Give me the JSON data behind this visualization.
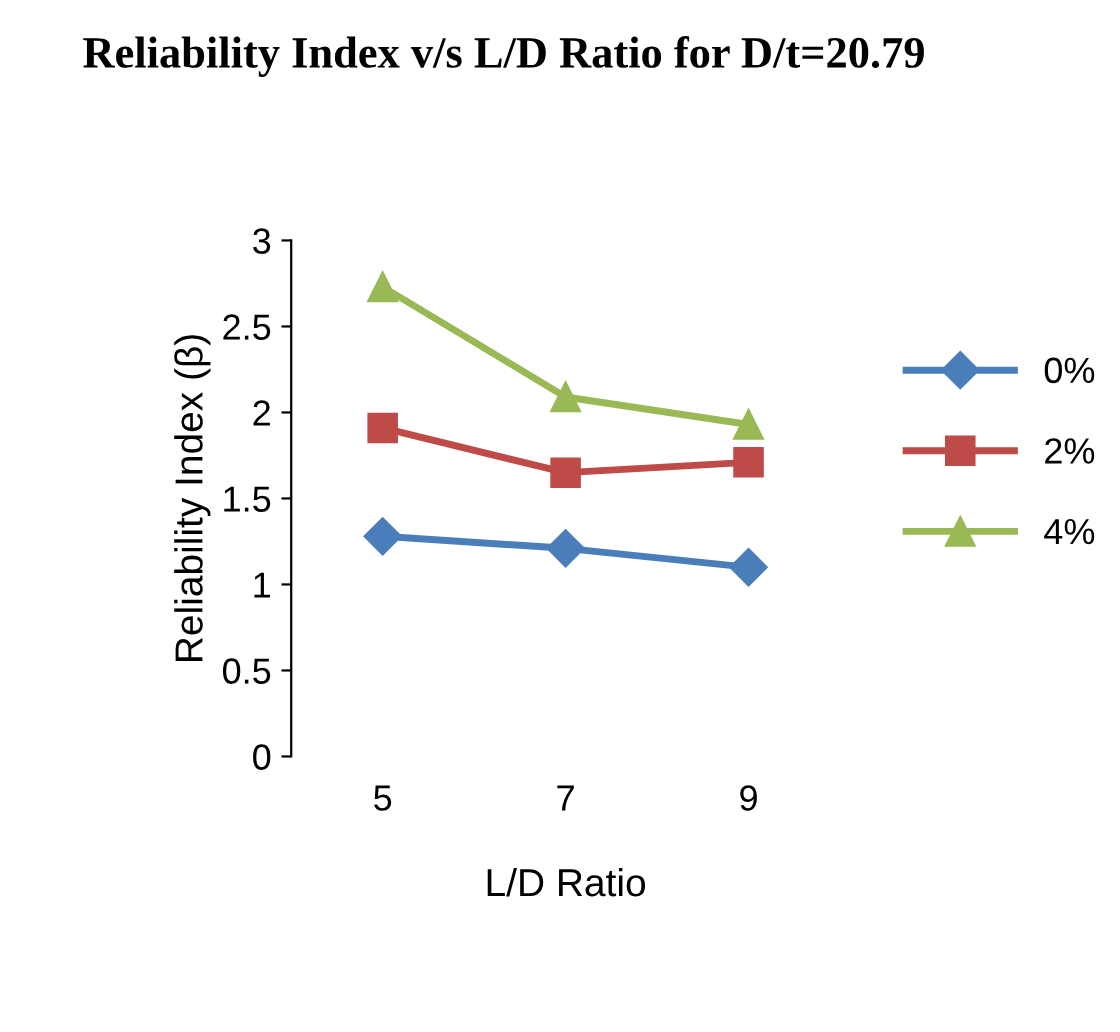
{
  "chart_data": {
    "type": "line",
    "title": "Reliability Index v/s L/D Ratio for D/t=20.79",
    "xlabel": "L/D Ratio",
    "ylabel": "Reliability Index (β)",
    "categories": [
      "5",
      "7",
      "9"
    ],
    "series": [
      {
        "name": "0%",
        "color": "#4a7ebb",
        "marker": "diamond",
        "values": [
          1.28,
          1.21,
          1.1
        ]
      },
      {
        "name": "2%",
        "color": "#be4b48",
        "marker": "square",
        "values": [
          1.91,
          1.65,
          1.71
        ]
      },
      {
        "name": "4%",
        "color": "#98b954",
        "marker": "triangle",
        "values": [
          2.73,
          2.09,
          1.93
        ]
      }
    ],
    "ylim": [
      0,
      3
    ],
    "yticks": [
      0,
      0.5,
      1,
      1.5,
      2,
      2.5,
      3
    ],
    "grid": false,
    "legend": "right",
    "line_style": "solid"
  }
}
